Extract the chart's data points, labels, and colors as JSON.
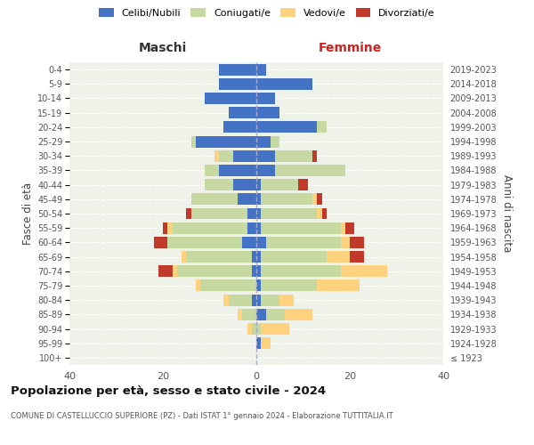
{
  "age_groups": [
    "100+",
    "95-99",
    "90-94",
    "85-89",
    "80-84",
    "75-79",
    "70-74",
    "65-69",
    "60-64",
    "55-59",
    "50-54",
    "45-49",
    "40-44",
    "35-39",
    "30-34",
    "25-29",
    "20-24",
    "15-19",
    "10-14",
    "5-9",
    "0-4"
  ],
  "birth_years": [
    "≤ 1923",
    "1924-1928",
    "1929-1933",
    "1934-1938",
    "1939-1943",
    "1944-1948",
    "1949-1953",
    "1954-1958",
    "1959-1963",
    "1964-1968",
    "1969-1973",
    "1974-1978",
    "1979-1983",
    "1984-1988",
    "1989-1993",
    "1994-1998",
    "1999-2003",
    "2004-2008",
    "2009-2013",
    "2014-2018",
    "2019-2023"
  ],
  "maschi": {
    "celibi": [
      0,
      0,
      0,
      0,
      1,
      0,
      1,
      1,
      3,
      2,
      2,
      4,
      5,
      8,
      5,
      13,
      7,
      6,
      11,
      8,
      8
    ],
    "coniugati": [
      0,
      0,
      1,
      3,
      5,
      12,
      16,
      14,
      16,
      16,
      12,
      10,
      6,
      3,
      3,
      1,
      0,
      0,
      0,
      0,
      0
    ],
    "vedovi": [
      0,
      0,
      1,
      1,
      1,
      1,
      1,
      1,
      0,
      1,
      0,
      0,
      0,
      0,
      1,
      0,
      0,
      0,
      0,
      0,
      0
    ],
    "divorziati": [
      0,
      0,
      0,
      0,
      0,
      0,
      3,
      0,
      3,
      1,
      1,
      0,
      0,
      0,
      0,
      0,
      0,
      0,
      0,
      0,
      0
    ]
  },
  "femmine": {
    "nubili": [
      0,
      1,
      0,
      2,
      1,
      1,
      1,
      1,
      2,
      1,
      1,
      1,
      1,
      4,
      4,
      3,
      13,
      5,
      4,
      12,
      2
    ],
    "coniugate": [
      0,
      0,
      1,
      4,
      4,
      12,
      17,
      14,
      16,
      17,
      12,
      11,
      8,
      15,
      8,
      2,
      2,
      0,
      0,
      0,
      0
    ],
    "vedove": [
      0,
      2,
      6,
      6,
      3,
      9,
      10,
      5,
      2,
      1,
      1,
      1,
      0,
      0,
      0,
      0,
      0,
      0,
      0,
      0,
      0
    ],
    "divorziate": [
      0,
      0,
      0,
      0,
      0,
      0,
      0,
      3,
      3,
      2,
      1,
      1,
      2,
      0,
      1,
      0,
      0,
      0,
      0,
      0,
      0
    ]
  },
  "colors": {
    "celibi_nubili": "#4472c4",
    "coniugati": "#c5d9a0",
    "vedovi": "#ffd280",
    "divorziati": "#c0392b"
  },
  "xlim": 40,
  "title": "Popolazione per età, sesso e stato civile - 2024",
  "subtitle": "COMUNE DI CASTELLUCCIO SUPERIORE (PZ) - Dati ISTAT 1° gennaio 2024 - Elaborazione TUTTITALIA.IT",
  "ylabel_left": "Fasce di età",
  "ylabel_right": "Anni di nascita",
  "xlabel_maschi": "Maschi",
  "xlabel_femmine": "Femmine",
  "bg_color": "#eef2e8",
  "bar_height": 0.8
}
